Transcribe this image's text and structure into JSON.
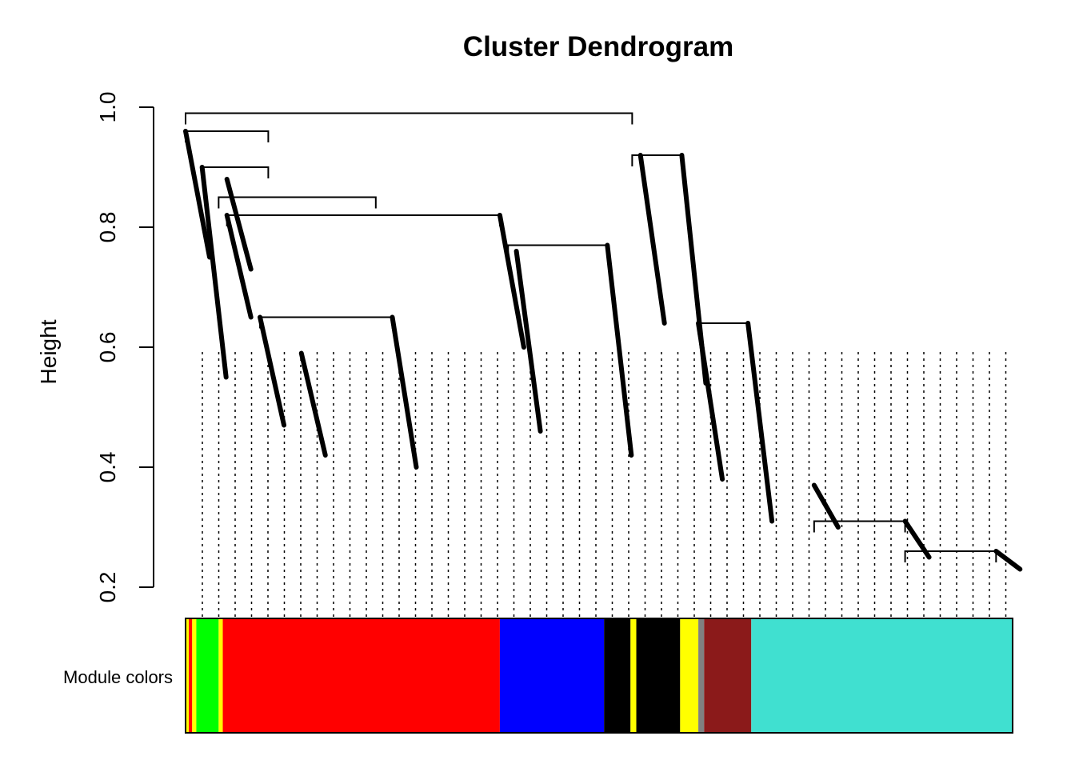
{
  "chart_data": {
    "type": "dendrogram",
    "title": "Cluster Dendrogram",
    "xlabel": "",
    "ylabel": "Height",
    "ylim": [
      0.2,
      1.0
    ],
    "y_ticks": [
      "0.2",
      "0.4",
      "0.6",
      "0.8",
      "1.0"
    ],
    "color_bar_label": "Module colors",
    "root_height": 0.99,
    "merges": [
      {
        "left": 0.0,
        "right": 0.54,
        "height": 0.99
      },
      {
        "left": 0.0,
        "right": 0.1,
        "height": 0.96
      },
      {
        "left": 0.02,
        "right": 0.1,
        "height": 0.9
      },
      {
        "left": 0.04,
        "right": 0.23,
        "height": 0.85
      },
      {
        "left": 0.05,
        "right": 0.38,
        "height": 0.82
      },
      {
        "left": 0.09,
        "right": 0.25,
        "height": 0.65
      },
      {
        "left": 0.39,
        "right": 0.51,
        "height": 0.77
      },
      {
        "left": 0.54,
        "right": 0.6,
        "height": 0.92
      },
      {
        "left": 0.62,
        "right": 0.68,
        "height": 0.64
      },
      {
        "left": 0.76,
        "right": 0.87,
        "height": 0.31
      },
      {
        "left": 0.87,
        "right": 0.98,
        "height": 0.26
      }
    ],
    "branch_tails": [
      {
        "x": 0.0,
        "top": 0.96,
        "bottom": 0.75
      },
      {
        "x": 0.02,
        "top": 0.9,
        "bottom": 0.55
      },
      {
        "x": 0.05,
        "top": 0.88,
        "bottom": 0.73
      },
      {
        "x": 0.05,
        "top": 0.82,
        "bottom": 0.65
      },
      {
        "x": 0.09,
        "top": 0.65,
        "bottom": 0.47
      },
      {
        "x": 0.14,
        "top": 0.59,
        "bottom": 0.42
      },
      {
        "x": 0.25,
        "top": 0.65,
        "bottom": 0.4
      },
      {
        "x": 0.38,
        "top": 0.82,
        "bottom": 0.6
      },
      {
        "x": 0.4,
        "top": 0.76,
        "bottom": 0.46
      },
      {
        "x": 0.51,
        "top": 0.77,
        "bottom": 0.42
      },
      {
        "x": 0.55,
        "top": 0.92,
        "bottom": 0.64
      },
      {
        "x": 0.6,
        "top": 0.92,
        "bottom": 0.54
      },
      {
        "x": 0.62,
        "top": 0.64,
        "bottom": 0.38
      },
      {
        "x": 0.68,
        "top": 0.64,
        "bottom": 0.31
      },
      {
        "x": 0.76,
        "top": 0.37,
        "bottom": 0.3
      },
      {
        "x": 0.87,
        "top": 0.31,
        "bottom": 0.25
      },
      {
        "x": 0.98,
        "top": 0.26,
        "bottom": 0.23
      }
    ],
    "module_colors": [
      {
        "color": "#FFFF00",
        "from": 0.0,
        "to": 0.004
      },
      {
        "color": "#FF0000",
        "from": 0.004,
        "to": 0.008
      },
      {
        "color": "#FFFF00",
        "from": 0.008,
        "to": 0.013
      },
      {
        "color": "#00FF00",
        "from": 0.013,
        "to": 0.04
      },
      {
        "color": "#FFFF00",
        "from": 0.04,
        "to": 0.045
      },
      {
        "color": "#FF0000",
        "from": 0.045,
        "to": 0.38
      },
      {
        "color": "#0000FF",
        "from": 0.38,
        "to": 0.506
      },
      {
        "color": "#000000",
        "from": 0.506,
        "to": 0.538
      },
      {
        "color": "#FFFF00",
        "from": 0.538,
        "to": 0.545
      },
      {
        "color": "#000000",
        "from": 0.545,
        "to": 0.598
      },
      {
        "color": "#FFFF00",
        "from": 0.598,
        "to": 0.62
      },
      {
        "color": "#808080",
        "from": 0.62,
        "to": 0.627
      },
      {
        "color": "#8B1A1A",
        "from": 0.627,
        "to": 0.684
      },
      {
        "color": "#40E0D0",
        "from": 0.684,
        "to": 1.0
      }
    ]
  }
}
